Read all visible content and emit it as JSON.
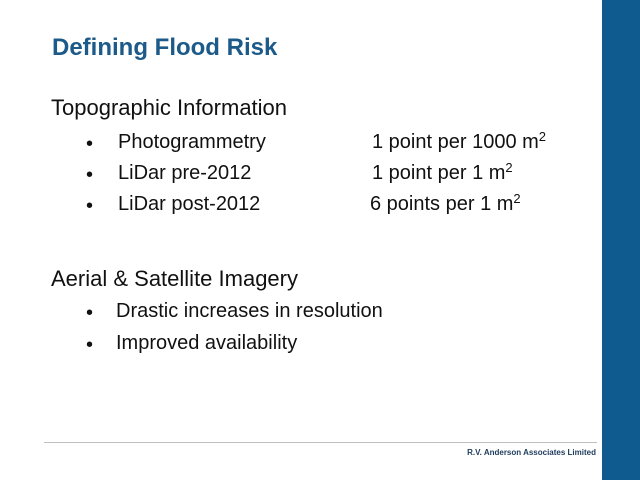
{
  "slide": {
    "title": "Defining Flood Risk",
    "colors": {
      "accent_bar": "#0f5a8e",
      "title": "#1c5a89"
    },
    "sections": [
      {
        "heading": "Topographic Information",
        "bullets": [
          {
            "marker": "•",
            "label": "Photogrammetry",
            "value": "1 point per 1000 m",
            "superscript": "2"
          },
          {
            "marker": "•",
            "label": "LiDar pre-2012",
            "value": "1 point per 1 m",
            "superscript": "2"
          },
          {
            "marker": "•",
            "label": "LiDar post-2012",
            "value": "6 points per 1 m",
            "superscript": "2"
          }
        ]
      },
      {
        "heading": "Aerial & Satellite Imagery",
        "bullets": [
          {
            "marker": "•",
            "label": "Drastic increases in resolution"
          },
          {
            "marker": "•",
            "label": "Improved availability"
          }
        ]
      }
    ],
    "footer": "R.V. Anderson Associates Limited"
  }
}
